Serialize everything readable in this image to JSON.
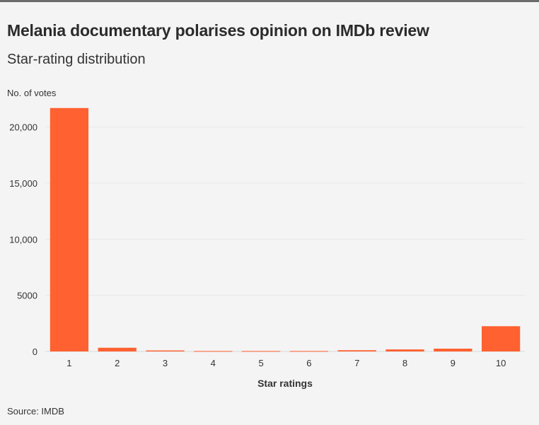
{
  "header": {
    "title": "Melania documentary polarises opinion on IMDb review",
    "subtitle": "Star-rating distribution"
  },
  "footer": {
    "source": "Source: IMDB"
  },
  "colors": {
    "bar": "#ff6130",
    "grid": "#e8e8e8",
    "text": "#333333",
    "baseline": "#d8d8d8"
  },
  "chart_data": {
    "type": "bar",
    "title": "Melania documentary polarises opinion on IMDb review",
    "subtitle": "Star-rating distribution",
    "xlabel": "Star ratings",
    "ylabel": "No. of votes",
    "categories": [
      "1",
      "2",
      "3",
      "4",
      "5",
      "6",
      "7",
      "8",
      "9",
      "10"
    ],
    "values": [
      21700,
      330,
      90,
      40,
      40,
      40,
      110,
      180,
      250,
      2250
    ],
    "ylim": [
      0,
      22000
    ],
    "yticks": [
      0,
      5000,
      10000,
      15000,
      20000
    ],
    "ytick_labels": [
      "0",
      "5000",
      "10,000",
      "15,000",
      "20,000"
    ],
    "grid": true,
    "legend": "none"
  }
}
